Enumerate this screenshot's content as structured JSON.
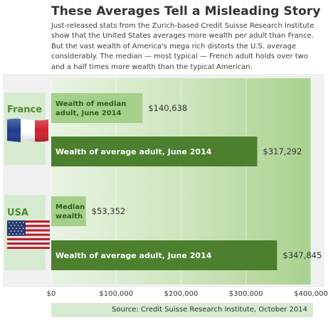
{
  "header": {
    "title": "These Averages Tell a Misleading Story",
    "subtitle": "Just-released stats from the Zurich-based Credit Suisse Research Institute show that the United States averages more wealth per adult than France. But the vast wealth of America's mega rich distorts the U.S. average considerably. The median — most typical — French adult holds over two and a half times more wealth than the typical American."
  },
  "footer": {
    "source": "Source: Credit Suisse Research Institute, October 2014"
  },
  "colors": {
    "plot_background": "#a9d18e",
    "median_bar": "#a4d08a",
    "average_bar": "#4c7f2e",
    "label_green": "#4a8a2c"
  },
  "flags": {
    "france": "france-flag-icon",
    "usa": "usa-flag-icon"
  },
  "chart_data": {
    "type": "bar",
    "orientation": "horizontal",
    "groups": [
      {
        "country": "France",
        "bars": [
          {
            "label": "Wealth of median adult, June 2014",
            "value": 140638,
            "value_label": "$140,638",
            "kind": "median"
          },
          {
            "label": "Wealth of average adult, June 2014",
            "value": 317292,
            "value_label": "$317,292",
            "kind": "average"
          }
        ]
      },
      {
        "country": "USA",
        "bars": [
          {
            "label": "Median wealth",
            "value": 53352,
            "value_label": "$53,352",
            "kind": "median"
          },
          {
            "label": "Wealth of average adult, June 2014",
            "value": 347845,
            "value_label": "$347,845",
            "kind": "average"
          }
        ]
      }
    ],
    "xlim": [
      0,
      400000
    ],
    "ticks": [
      0,
      100000,
      200000,
      300000,
      400000
    ],
    "tick_labels": [
      "$0",
      "$100,000",
      "$200,000",
      "$300,000",
      "$400,000"
    ],
    "grid": true
  }
}
